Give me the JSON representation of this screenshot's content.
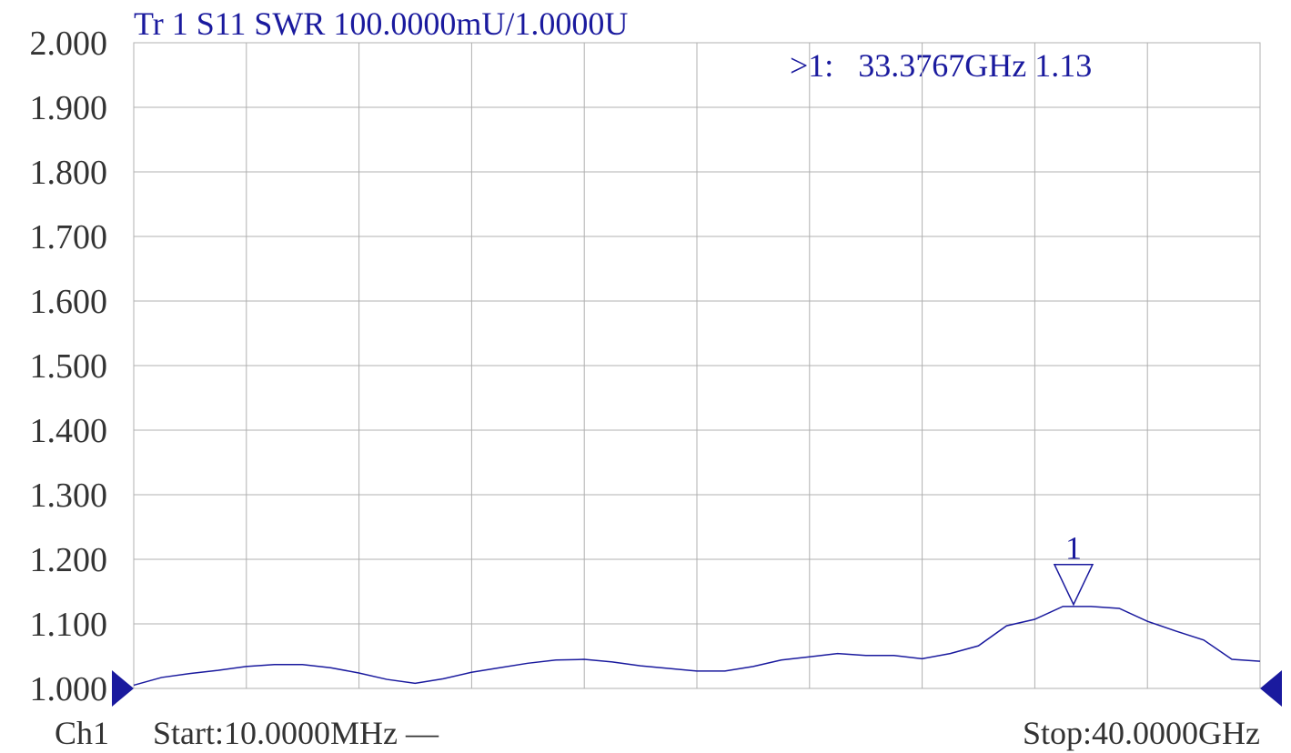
{
  "chart_data": {
    "type": "line",
    "title": "Tr 1  S11 SWR 100.0000mU/1.0000U",
    "readout": ">1:   33.3767GHz 1.13",
    "channel": "Ch1",
    "start_label": "Start:10.0000MHz —",
    "stop_label": "Stop:40.0000GHz",
    "x": [
      0.01,
      1,
      2,
      3,
      4,
      5,
      6,
      7,
      8,
      9,
      10,
      11,
      12,
      13,
      14,
      15,
      16,
      17,
      18,
      19,
      20,
      21,
      22,
      23,
      24,
      25,
      26,
      27,
      28,
      29,
      30,
      31,
      32,
      33,
      34,
      35,
      36,
      37,
      38,
      39,
      40
    ],
    "series": [
      {
        "name": "S11",
        "color": "#1a1a9e",
        "values": [
          1.005,
          1.017,
          1.023,
          1.028,
          1.034,
          1.037,
          1.037,
          1.032,
          1.024,
          1.014,
          1.008,
          1.015,
          1.025,
          1.032,
          1.039,
          1.044,
          1.045,
          1.041,
          1.035,
          1.031,
          1.027,
          1.027,
          1.034,
          1.044,
          1.049,
          1.054,
          1.051,
          1.051,
          1.046,
          1.054,
          1.066,
          1.097,
          1.107,
          1.127,
          1.127,
          1.124,
          1.104,
          1.089,
          1.075,
          1.045,
          1.042
        ]
      }
    ],
    "marker": {
      "label": "1",
      "x": 33.3767,
      "y": 1.13
    },
    "xlim": [
      0.01,
      40
    ],
    "ylim": [
      1,
      2
    ],
    "yticks": [
      {
        "value": 1,
        "label": "1.000"
      },
      {
        "value": 1.1,
        "label": "1.100"
      },
      {
        "value": 1.2,
        "label": "1.200"
      },
      {
        "value": 1.3,
        "label": "1.300"
      },
      {
        "value": 1.4,
        "label": "1.400"
      },
      {
        "value": 1.5,
        "label": "1.500"
      },
      {
        "value": 1.6,
        "label": "1.600"
      },
      {
        "value": 1.7,
        "label": "1.700"
      },
      {
        "value": 1.8,
        "label": "1.800"
      },
      {
        "value": 1.9,
        "label": "1.900"
      },
      {
        "value": 2,
        "label": "2.000"
      }
    ],
    "x_divisions": 10,
    "grid": true
  }
}
